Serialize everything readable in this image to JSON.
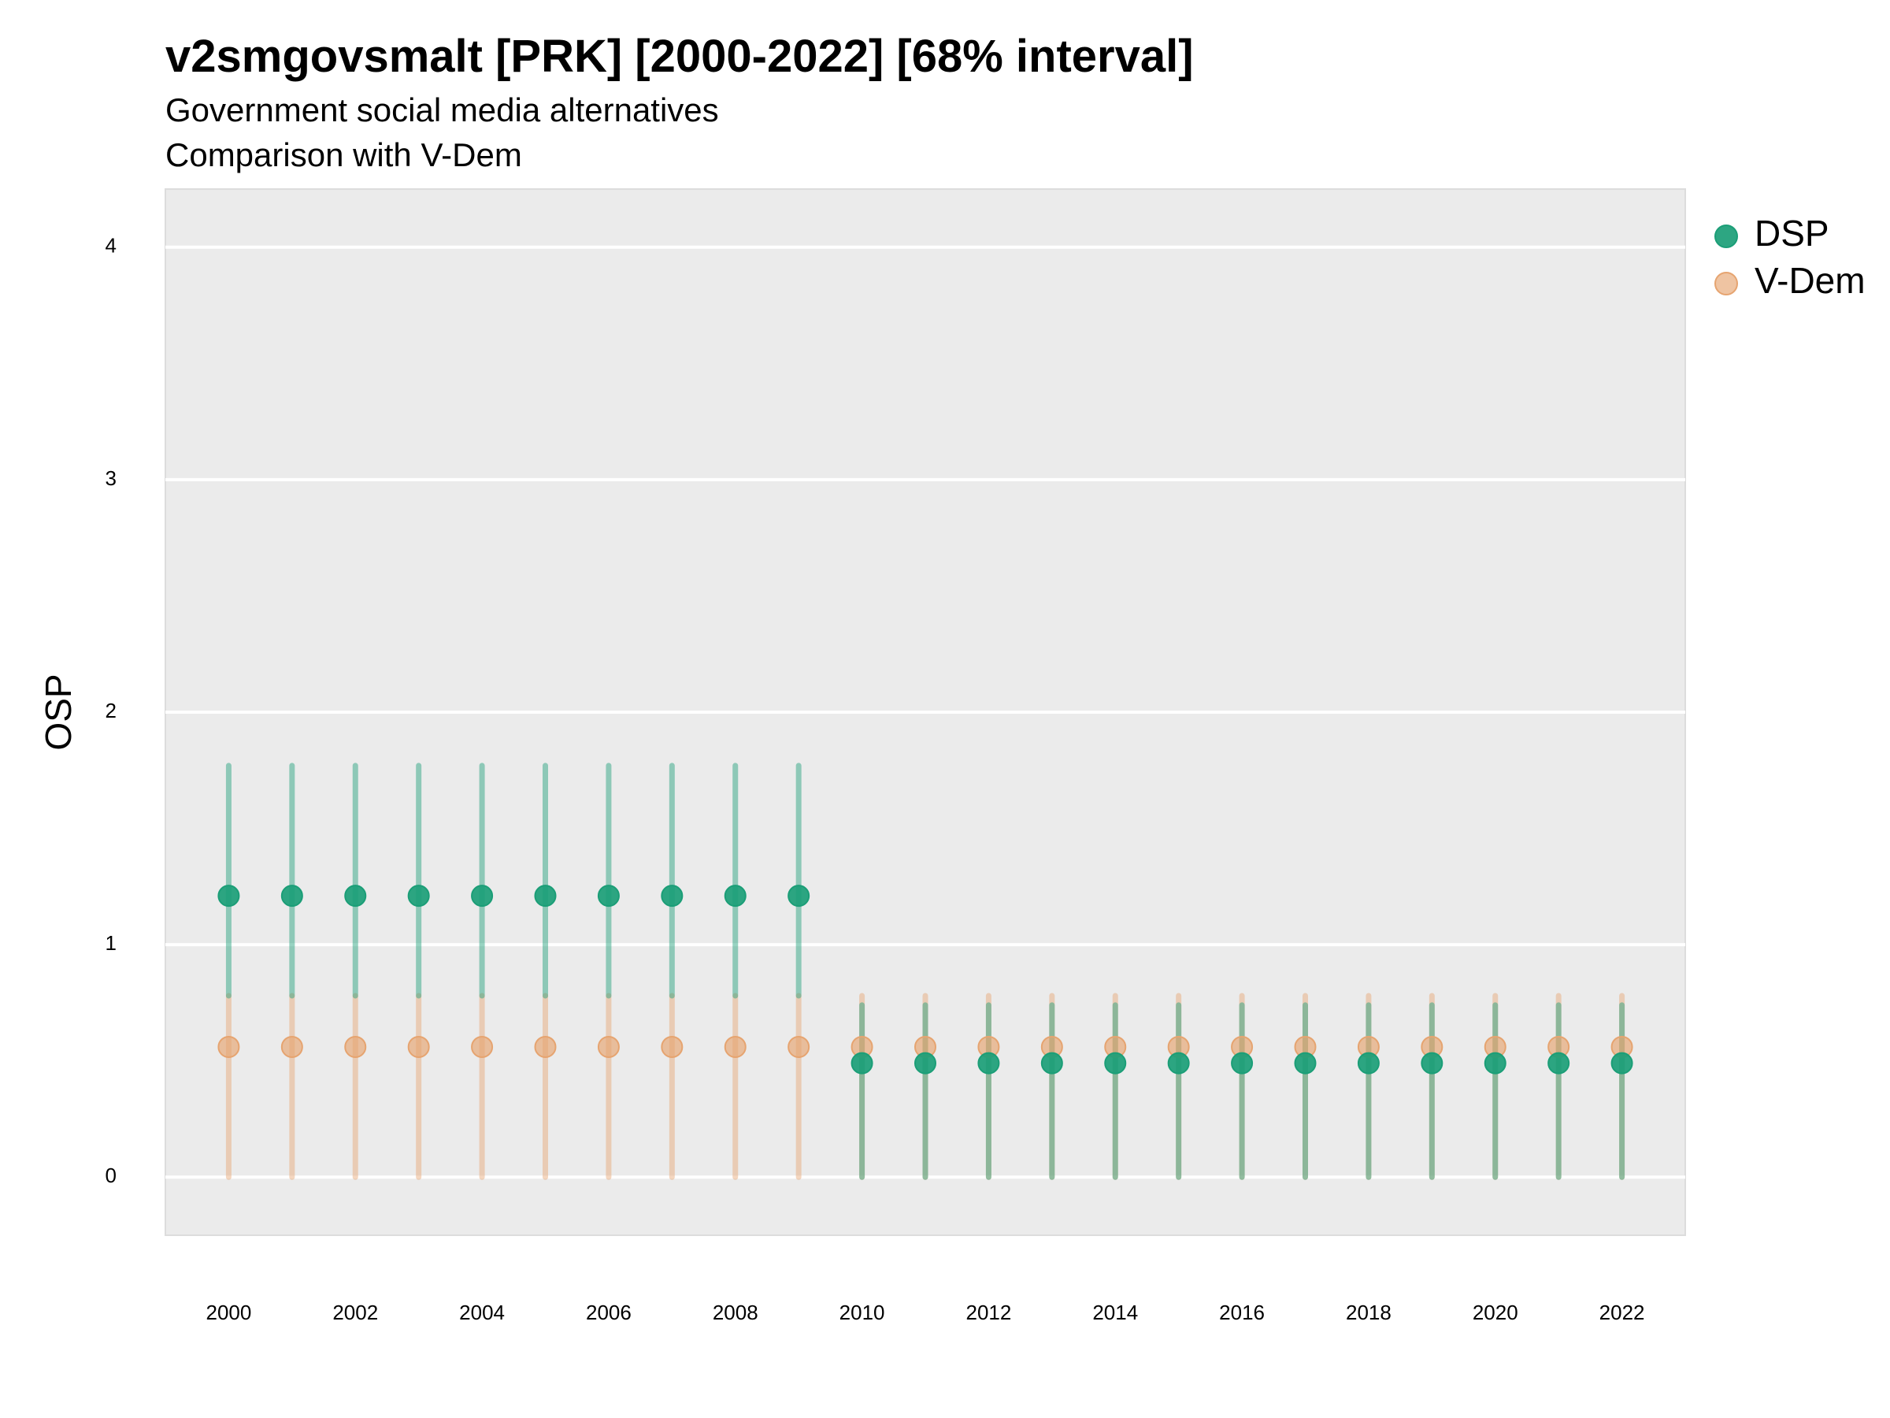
{
  "chart_data": {
    "type": "scatter",
    "title": "v2smgovsmalt [PRK] [2000-2022] [68% interval]",
    "subtitle": "Government social media alternatives",
    "caption": "Comparison with V-Dem",
    "xlabel": "",
    "ylabel": "OSP",
    "x_ticks": [
      "2000",
      "2002",
      "2004",
      "2006",
      "2008",
      "2010",
      "2012",
      "2014",
      "2016",
      "2018",
      "2020",
      "2022"
    ],
    "y_ticks": [
      "0",
      "1",
      "2",
      "3",
      "4"
    ],
    "xlim": [
      1999,
      2023
    ],
    "ylim": [
      -0.25,
      4.25
    ],
    "grid": true,
    "legend_position": "right",
    "x": [
      2000,
      2001,
      2002,
      2003,
      2004,
      2005,
      2006,
      2007,
      2008,
      2009,
      2010,
      2011,
      2012,
      2013,
      2014,
      2015,
      2016,
      2017,
      2018,
      2019,
      2020,
      2021,
      2022
    ],
    "series": [
      {
        "name": "DSP",
        "color": "#1b9e77",
        "values": [
          1.21,
          1.21,
          1.21,
          1.21,
          1.21,
          1.21,
          1.21,
          1.21,
          1.21,
          1.21,
          0.49,
          0.49,
          0.49,
          0.49,
          0.49,
          0.49,
          0.49,
          0.49,
          0.49,
          0.49,
          0.49,
          0.49,
          0.49
        ],
        "lower": [
          0.78,
          0.78,
          0.78,
          0.78,
          0.78,
          0.78,
          0.78,
          0.78,
          0.78,
          0.78,
          0.0,
          0.0,
          0.0,
          0.0,
          0.0,
          0.0,
          0.0,
          0.0,
          0.0,
          0.0,
          0.0,
          0.0,
          0.0
        ],
        "upper": [
          1.77,
          1.77,
          1.77,
          1.77,
          1.77,
          1.77,
          1.77,
          1.77,
          1.77,
          1.77,
          0.74,
          0.74,
          0.74,
          0.74,
          0.74,
          0.74,
          0.74,
          0.74,
          0.74,
          0.74,
          0.74,
          0.74,
          0.74
        ]
      },
      {
        "name": "V-Dem",
        "color": "#e6a470",
        "values": [
          0.56,
          0.56,
          0.56,
          0.56,
          0.56,
          0.56,
          0.56,
          0.56,
          0.56,
          0.56,
          0.56,
          0.56,
          0.56,
          0.56,
          0.56,
          0.56,
          0.56,
          0.56,
          0.56,
          0.56,
          0.56,
          0.56,
          0.56
        ],
        "lower": [
          0.0,
          0.0,
          0.0,
          0.0,
          0.0,
          0.0,
          0.0,
          0.0,
          0.0,
          0.0,
          0.0,
          0.0,
          0.0,
          0.0,
          0.0,
          0.0,
          0.0,
          0.0,
          0.0,
          0.0,
          0.0,
          0.0,
          0.0
        ],
        "upper": [
          0.78,
          0.78,
          0.78,
          0.78,
          0.78,
          0.78,
          0.78,
          0.78,
          0.78,
          0.78,
          0.78,
          0.78,
          0.78,
          0.78,
          0.78,
          0.78,
          0.78,
          0.78,
          0.78,
          0.78,
          0.78,
          0.78,
          0.78
        ]
      }
    ]
  }
}
